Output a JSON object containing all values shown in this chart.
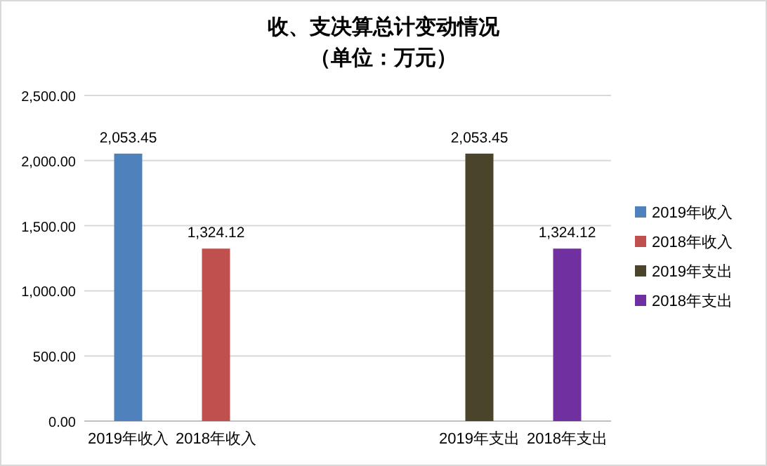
{
  "chart_data": {
    "type": "bar",
    "title": "收、支决算总计变动情况",
    "subtitle": "（单位：万元）",
    "categories": [
      "2019年收入",
      "2018年收入",
      null,
      null,
      "2019年支出",
      "2018年支出"
    ],
    "series": [
      {
        "name": "2019年收入",
        "color": "#4f81bd",
        "values": [
          2053.45,
          null,
          null,
          null,
          null,
          null
        ],
        "value_labels": [
          "2,053.45",
          null,
          null,
          null,
          null,
          null
        ]
      },
      {
        "name": "2018年收入",
        "color": "#c0504d",
        "values": [
          null,
          1324.12,
          null,
          null,
          null,
          null
        ],
        "value_labels": [
          null,
          "1,324.12",
          null,
          null,
          null,
          null
        ]
      },
      {
        "name": "2019年支出",
        "color": "#4a452a",
        "values": [
          null,
          null,
          null,
          null,
          2053.45,
          null
        ],
        "value_labels": [
          null,
          null,
          null,
          null,
          "2,053.45",
          null
        ]
      },
      {
        "name": "2018年支出",
        "color": "#7030a0",
        "values": [
          null,
          null,
          null,
          null,
          null,
          1324.12
        ],
        "value_labels": [
          null,
          null,
          null,
          null,
          null,
          "1,324.12"
        ]
      }
    ],
    "ylim": [
      0,
      2500
    ],
    "yticks": [
      {
        "value": 0,
        "label": "0.00"
      },
      {
        "value": 500,
        "label": "500.00"
      },
      {
        "value": 1000,
        "label": "1,000.00"
      },
      {
        "value": 1500,
        "label": "1,500.00"
      },
      {
        "value": 2000,
        "label": "2,000.00"
      },
      {
        "value": 2500,
        "label": "2,500.00"
      }
    ],
    "grid": "y",
    "legend": "right"
  }
}
